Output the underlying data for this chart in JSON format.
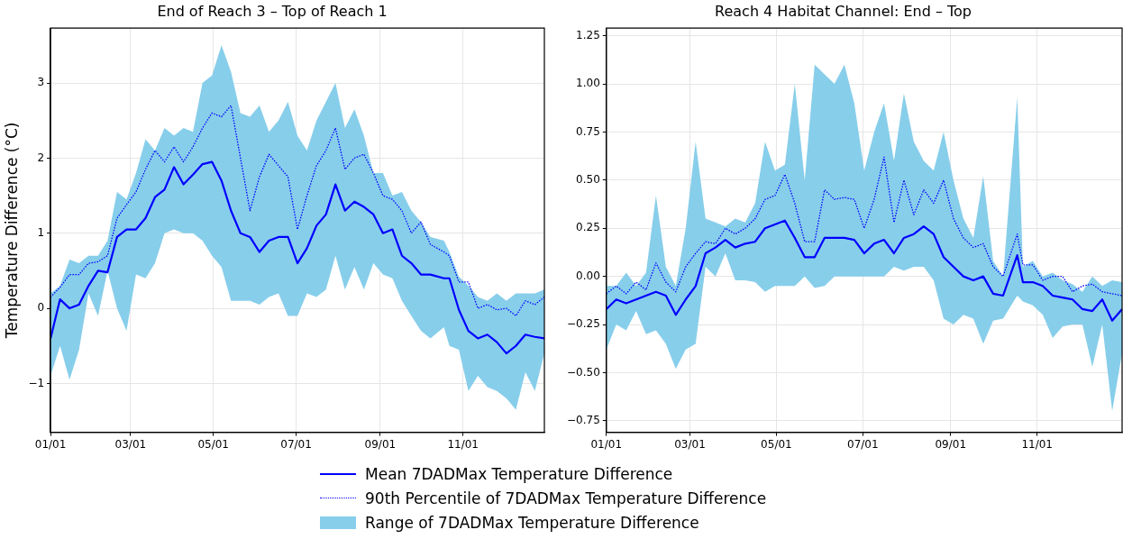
{
  "chart_data": [
    {
      "type": "line",
      "title": "End of Reach 3 – Top of Reach 1",
      "ylabel": "Temperature Difference (°C)",
      "x": [
        "--01-01",
        "--01-08",
        "--01-15",
        "--01-22",
        "--01-29",
        "--02-05",
        "--02-12",
        "--02-19",
        "--02-26",
        "--03-05",
        "--03-12",
        "--03-19",
        "--03-26",
        "--04-02",
        "--04-09",
        "--04-16",
        "--04-23",
        "--04-30",
        "--05-07",
        "--05-14",
        "--05-21",
        "--05-28",
        "--06-04",
        "--06-11",
        "--06-18",
        "--06-25",
        "--07-02",
        "--07-09",
        "--07-16",
        "--07-23",
        "--07-30",
        "--08-06",
        "--08-13",
        "--08-20",
        "--08-27",
        "--09-03",
        "--09-10",
        "--09-17",
        "--09-24",
        "--10-01",
        "--10-08",
        "--10-18",
        "--10-22",
        "--10-29",
        "--11-05",
        "--11-12",
        "--11-19",
        "--11-26",
        "--12-03",
        "--12-10",
        "--12-17",
        "--12-24",
        "--12-31"
      ],
      "series": [
        {
          "name": "Mean 7DADMax Temperature Difference",
          "type": "line",
          "line_style": "solid",
          "color": "#0000ff",
          "values": [
            -0.4,
            0.12,
            0.0,
            0.05,
            0.3,
            0.5,
            0.48,
            0.95,
            1.05,
            1.05,
            1.2,
            1.48,
            1.58,
            1.88,
            1.65,
            1.78,
            1.92,
            1.95,
            1.7,
            1.3,
            1.0,
            0.95,
            0.75,
            0.9,
            0.95,
            0.95,
            0.6,
            0.8,
            1.1,
            1.25,
            1.65,
            1.3,
            1.42,
            1.35,
            1.25,
            1.0,
            1.05,
            0.7,
            0.6,
            0.45,
            0.45,
            0.4,
            0.4,
            -0.02,
            -0.3,
            -0.4,
            -0.35,
            -0.45,
            -0.6,
            -0.5,
            -0.35,
            -0.38,
            -0.4
          ],
          "upper": [
            0.2,
            0.3,
            0.65,
            0.6,
            0.7,
            0.7,
            0.9,
            1.55,
            1.45,
            1.8,
            2.25,
            2.1,
            2.4,
            2.3,
            2.4,
            2.35,
            3.0,
            3.1,
            3.5,
            3.15,
            2.6,
            2.55,
            2.7,
            2.35,
            2.5,
            2.75,
            2.3,
            2.1,
            2.5,
            2.75,
            3.0,
            2.4,
            2.65,
            2.3,
            1.8,
            1.8,
            1.5,
            1.55,
            1.3,
            1.15,
            0.95,
            0.9,
            0.75,
            0.42,
            0.3,
            0.15,
            0.1,
            0.2,
            0.1,
            0.2,
            0.2,
            0.2,
            0.25
          ],
          "lower": [
            -0.9,
            -0.5,
            -0.95,
            -0.55,
            0.2,
            -0.1,
            0.5,
            0.0,
            -0.3,
            0.45,
            0.4,
            0.6,
            1.0,
            1.05,
            1.0,
            1.0,
            0.9,
            0.7,
            0.55,
            0.1,
            0.1,
            0.1,
            0.05,
            0.15,
            0.2,
            -0.1,
            -0.1,
            0.2,
            0.15,
            0.25,
            0.7,
            0.25,
            0.55,
            0.25,
            0.6,
            0.45,
            0.4,
            0.1,
            -0.1,
            -0.3,
            -0.4,
            -0.25,
            -0.5,
            -0.55,
            -1.1,
            -0.9,
            -1.05,
            -1.1,
            -1.2,
            -1.35,
            -0.85,
            -1.1,
            -0.6
          ]
        },
        {
          "name": "90th Percentile of 7DADMax Temperature Difference",
          "type": "line",
          "line_style": "dotted",
          "color": "#0000ff",
          "values": [
            0.15,
            0.28,
            0.45,
            0.45,
            0.6,
            0.62,
            0.7,
            1.2,
            1.38,
            1.55,
            1.85,
            2.1,
            1.95,
            2.15,
            1.95,
            2.15,
            2.4,
            2.6,
            2.55,
            2.7,
            2.0,
            1.3,
            1.75,
            2.05,
            1.9,
            1.75,
            1.05,
            1.5,
            1.9,
            2.1,
            2.4,
            1.85,
            2.0,
            2.05,
            1.8,
            1.5,
            1.45,
            1.3,
            1.0,
            1.15,
            0.85,
            0.75,
            0.7,
            0.35,
            0.35,
            0.0,
            0.05,
            -0.02,
            0.0,
            -0.1,
            0.1,
            0.05,
            0.15
          ]
        },
        {
          "name": "Range of 7DADMax Temperature Difference",
          "type": "area",
          "color": "#87ceeb",
          "values": [
            null,
            null,
            null,
            null,
            null,
            null,
            null,
            null,
            null,
            null,
            null,
            null,
            null,
            null,
            null,
            null,
            null,
            null,
            null,
            null,
            null,
            null,
            null,
            null,
            null,
            null,
            null,
            null,
            null,
            null,
            null,
            null,
            null,
            null,
            null,
            null,
            null,
            null,
            null,
            null,
            null,
            null,
            null,
            null,
            null,
            null,
            null,
            null,
            null,
            null,
            null,
            null,
            null
          ]
        }
      ],
      "xlim": [
        "--01-01",
        "--12-31"
      ],
      "xticks": [
        {
          "value": "--01-01",
          "label": "01/01"
        },
        {
          "value": "--03-01",
          "label": "03/01"
        },
        {
          "value": "--05-01",
          "label": "05/01"
        },
        {
          "value": "--07-01",
          "label": "07/01"
        },
        {
          "value": "--09-01",
          "label": "09/01"
        },
        {
          "value": "--11-01",
          "label": "11/01"
        }
      ],
      "ylim": [
        -1.65,
        3.73
      ],
      "yticks": [
        {
          "value": -1,
          "label": "−1"
        },
        0,
        1,
        2,
        3
      ],
      "grid": true,
      "marker": "none",
      "legend": "bottom"
    },
    {
      "type": "line",
      "title": "Reach 4 Habitat Channel: End – Top",
      "x": [
        "--01-01",
        "--01-08",
        "--01-15",
        "--01-22",
        "--01-29",
        "--02-05",
        "--02-12",
        "--02-19",
        "--02-26",
        "--03-05",
        "--03-12",
        "--03-19",
        "--03-26",
        "--04-02",
        "--04-09",
        "--04-16",
        "--04-23",
        "--04-30",
        "--05-07",
        "--05-14",
        "--05-21",
        "--05-28",
        "--06-04",
        "--06-11",
        "--06-18",
        "--06-25",
        "--07-02",
        "--07-09",
        "--07-16",
        "--07-23",
        "--07-30",
        "--08-06",
        "--08-13",
        "--08-20",
        "--08-27",
        "--09-03",
        "--09-10",
        "--09-17",
        "--09-24",
        "--10-01",
        "--10-08",
        "--10-18",
        "--10-22",
        "--10-29",
        "--11-05",
        "--11-12",
        "--11-19",
        "--11-26",
        "--12-03",
        "--12-10",
        "--12-17",
        "--12-24",
        "--12-31"
      ],
      "series": [
        {
          "type": "line",
          "line_style": "solid",
          "color": "#0000ff",
          "values": [
            -0.17,
            -0.12,
            -0.14,
            -0.12,
            -0.1,
            -0.08,
            -0.1,
            -0.2,
            -0.12,
            -0.05,
            0.12,
            0.15,
            0.19,
            0.15,
            0.17,
            0.18,
            0.25,
            0.27,
            0.29,
            0.2,
            0.1,
            0.1,
            0.2,
            0.2,
            0.2,
            0.19,
            0.12,
            0.17,
            0.19,
            0.12,
            0.2,
            0.22,
            0.26,
            0.22,
            0.1,
            0.05,
            0.0,
            -0.02,
            0.0,
            -0.09,
            -0.1,
            0.11,
            -0.03,
            -0.03,
            -0.05,
            -0.1,
            -0.11,
            -0.12,
            -0.17,
            -0.18,
            -0.12,
            -0.23,
            -0.17
          ],
          "upper": [
            -0.05,
            -0.05,
            0.02,
            -0.05,
            0.02,
            0.42,
            0.05,
            -0.05,
            0.25,
            0.7,
            0.3,
            0.28,
            0.26,
            0.3,
            0.28,
            0.38,
            0.7,
            0.55,
            0.58,
            1.0,
            0.5,
            1.1,
            1.05,
            1.0,
            1.1,
            0.9,
            0.55,
            0.75,
            0.9,
            0.6,
            0.95,
            0.7,
            0.6,
            0.55,
            0.75,
            0.5,
            0.3,
            0.2,
            0.52,
            0.08,
            0.0,
            0.93,
            0.05,
            0.08,
            0.0,
            0.02,
            -0.02,
            -0.04,
            -0.08,
            0.0,
            -0.05,
            -0.02,
            -0.03
          ],
          "lower": [
            -0.38,
            -0.25,
            -0.28,
            -0.18,
            -0.3,
            -0.28,
            -0.35,
            -0.48,
            -0.38,
            -0.35,
            0.05,
            0.0,
            0.12,
            -0.02,
            -0.02,
            -0.03,
            -0.08,
            -0.05,
            -0.05,
            -0.05,
            0.0,
            -0.06,
            -0.05,
            0.0,
            0.0,
            0.0,
            0.0,
            0.0,
            0.0,
            0.05,
            0.03,
            0.05,
            0.05,
            -0.02,
            -0.22,
            -0.25,
            -0.2,
            -0.22,
            -0.35,
            -0.23,
            -0.22,
            -0.1,
            -0.13,
            -0.15,
            -0.2,
            -0.32,
            -0.26,
            -0.25,
            -0.25,
            -0.47,
            -0.25,
            -0.7,
            -0.4
          ]
        },
        {
          "type": "line",
          "line_style": "dotted",
          "color": "#0000ff",
          "values": [
            -0.09,
            -0.05,
            -0.09,
            -0.03,
            -0.07,
            0.07,
            -0.03,
            -0.08,
            0.05,
            0.12,
            0.18,
            0.17,
            0.25,
            0.22,
            0.25,
            0.3,
            0.4,
            0.42,
            0.53,
            0.38,
            0.18,
            0.18,
            0.45,
            0.4,
            0.41,
            0.4,
            0.25,
            0.4,
            0.62,
            0.28,
            0.5,
            0.32,
            0.45,
            0.38,
            0.5,
            0.3,
            0.2,
            0.15,
            0.17,
            0.05,
            0.0,
            0.22,
            0.06,
            0.06,
            -0.02,
            0.0,
            0.0,
            -0.08,
            -0.05,
            -0.04,
            -0.08,
            -0.09,
            -0.1
          ]
        },
        {
          "type": "area",
          "color": "#87ceeb",
          "values": [
            null,
            null,
            null,
            null,
            null,
            null,
            null,
            null,
            null,
            null,
            null,
            null,
            null,
            null,
            null,
            null,
            null,
            null,
            null,
            null,
            null,
            null,
            null,
            null,
            null,
            null,
            null,
            null,
            null,
            null,
            null,
            null,
            null,
            null,
            null,
            null,
            null,
            null,
            null,
            null,
            null,
            null,
            null,
            null,
            null,
            null,
            null,
            null,
            null,
            null,
            null,
            null,
            null
          ]
        }
      ],
      "xlim": [
        "--01-01",
        "--12-31"
      ],
      "xticks": [
        {
          "value": "--01-01",
          "label": "01/01"
        },
        {
          "value": "--03-01",
          "label": "03/01"
        },
        {
          "value": "--05-01",
          "label": "05/01"
        },
        {
          "value": "--07-01",
          "label": "07/01"
        },
        {
          "value": "--09-01",
          "label": "09/01"
        },
        {
          "value": "--11-01",
          "label": "11/01"
        }
      ],
      "ylim": [
        -0.81,
        1.29
      ],
      "yticks": [
        {
          "value": -0.75,
          "label": "−0.75"
        },
        {
          "value": -0.5,
          "label": "−0.50"
        },
        {
          "value": -0.25,
          "label": "−0.25"
        },
        {
          "value": 0,
          "label": "0.00"
        },
        {
          "value": 0.25,
          "label": "0.25"
        },
        {
          "value": 0.5,
          "label": "0.50"
        },
        {
          "value": 0.75,
          "label": "0.75"
        },
        {
          "value": 1,
          "label": "1.00"
        },
        {
          "value": 1.25,
          "label": "1.25"
        }
      ],
      "grid": true,
      "marker": "none"
    }
  ]
}
